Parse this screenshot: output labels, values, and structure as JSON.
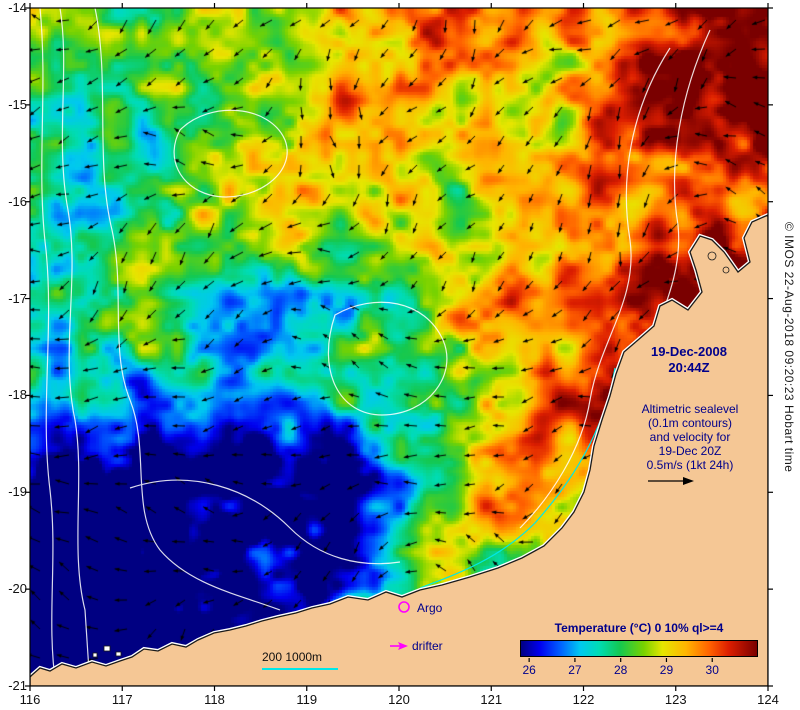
{
  "figure": {
    "datetime_line1": "19-Dec-2008",
    "datetime_line2": "20:44Z",
    "annotation_lines": [
      "Altimetric sealevel",
      "(0.1m contours)",
      "and velocity for",
      "19-Dec 20Z",
      "0.5m/s (1kt 24h)"
    ],
    "legend": {
      "argo_label": "Argo",
      "drifter_label": "drifter",
      "depth_scale_label": "200  1000m"
    },
    "colorbar": {
      "title": "Temperature (°C) 0 10% ql>=4",
      "tick_labels": [
        "26",
        "27",
        "28",
        "29",
        "30"
      ],
      "range_min": 25.8,
      "range_max": 31.0,
      "palette": [
        {
          "t": 0.0,
          "color": "#000082"
        },
        {
          "t": 0.08,
          "color": "#0000f0"
        },
        {
          "t": 0.17,
          "color": "#0064ff"
        },
        {
          "t": 0.25,
          "color": "#00c8f0"
        },
        {
          "t": 0.33,
          "color": "#00dcb4"
        },
        {
          "t": 0.42,
          "color": "#14c850"
        },
        {
          "t": 0.52,
          "color": "#78d200"
        },
        {
          "t": 0.6,
          "color": "#e6e600"
        },
        {
          "t": 0.7,
          "color": "#ffb400"
        },
        {
          "t": 0.8,
          "color": "#ff6000"
        },
        {
          "t": 0.88,
          "color": "#dc1e00"
        },
        {
          "t": 1.0,
          "color": "#7a0000"
        }
      ]
    },
    "axes": {
      "x_tick_labels": [
        "116",
        "117",
        "118",
        "119",
        "120",
        "121",
        "122",
        "123",
        "124"
      ],
      "y_tick_labels": [
        "-14",
        "-15",
        "-16",
        "-17",
        "-18",
        "-19",
        "-20",
        "-21"
      ],
      "lon_range": [
        116,
        124
      ],
      "lat_range": [
        -21,
        -14
      ]
    },
    "copyright": "© IMOS 22-Aug-2018 09:20:23 Hobart time",
    "colors": {
      "annotation_text": "#00008b",
      "land": "#f5c795",
      "marker_magenta": "#ff00ff",
      "isobath_cyan": "#00e8e8"
    }
  }
}
